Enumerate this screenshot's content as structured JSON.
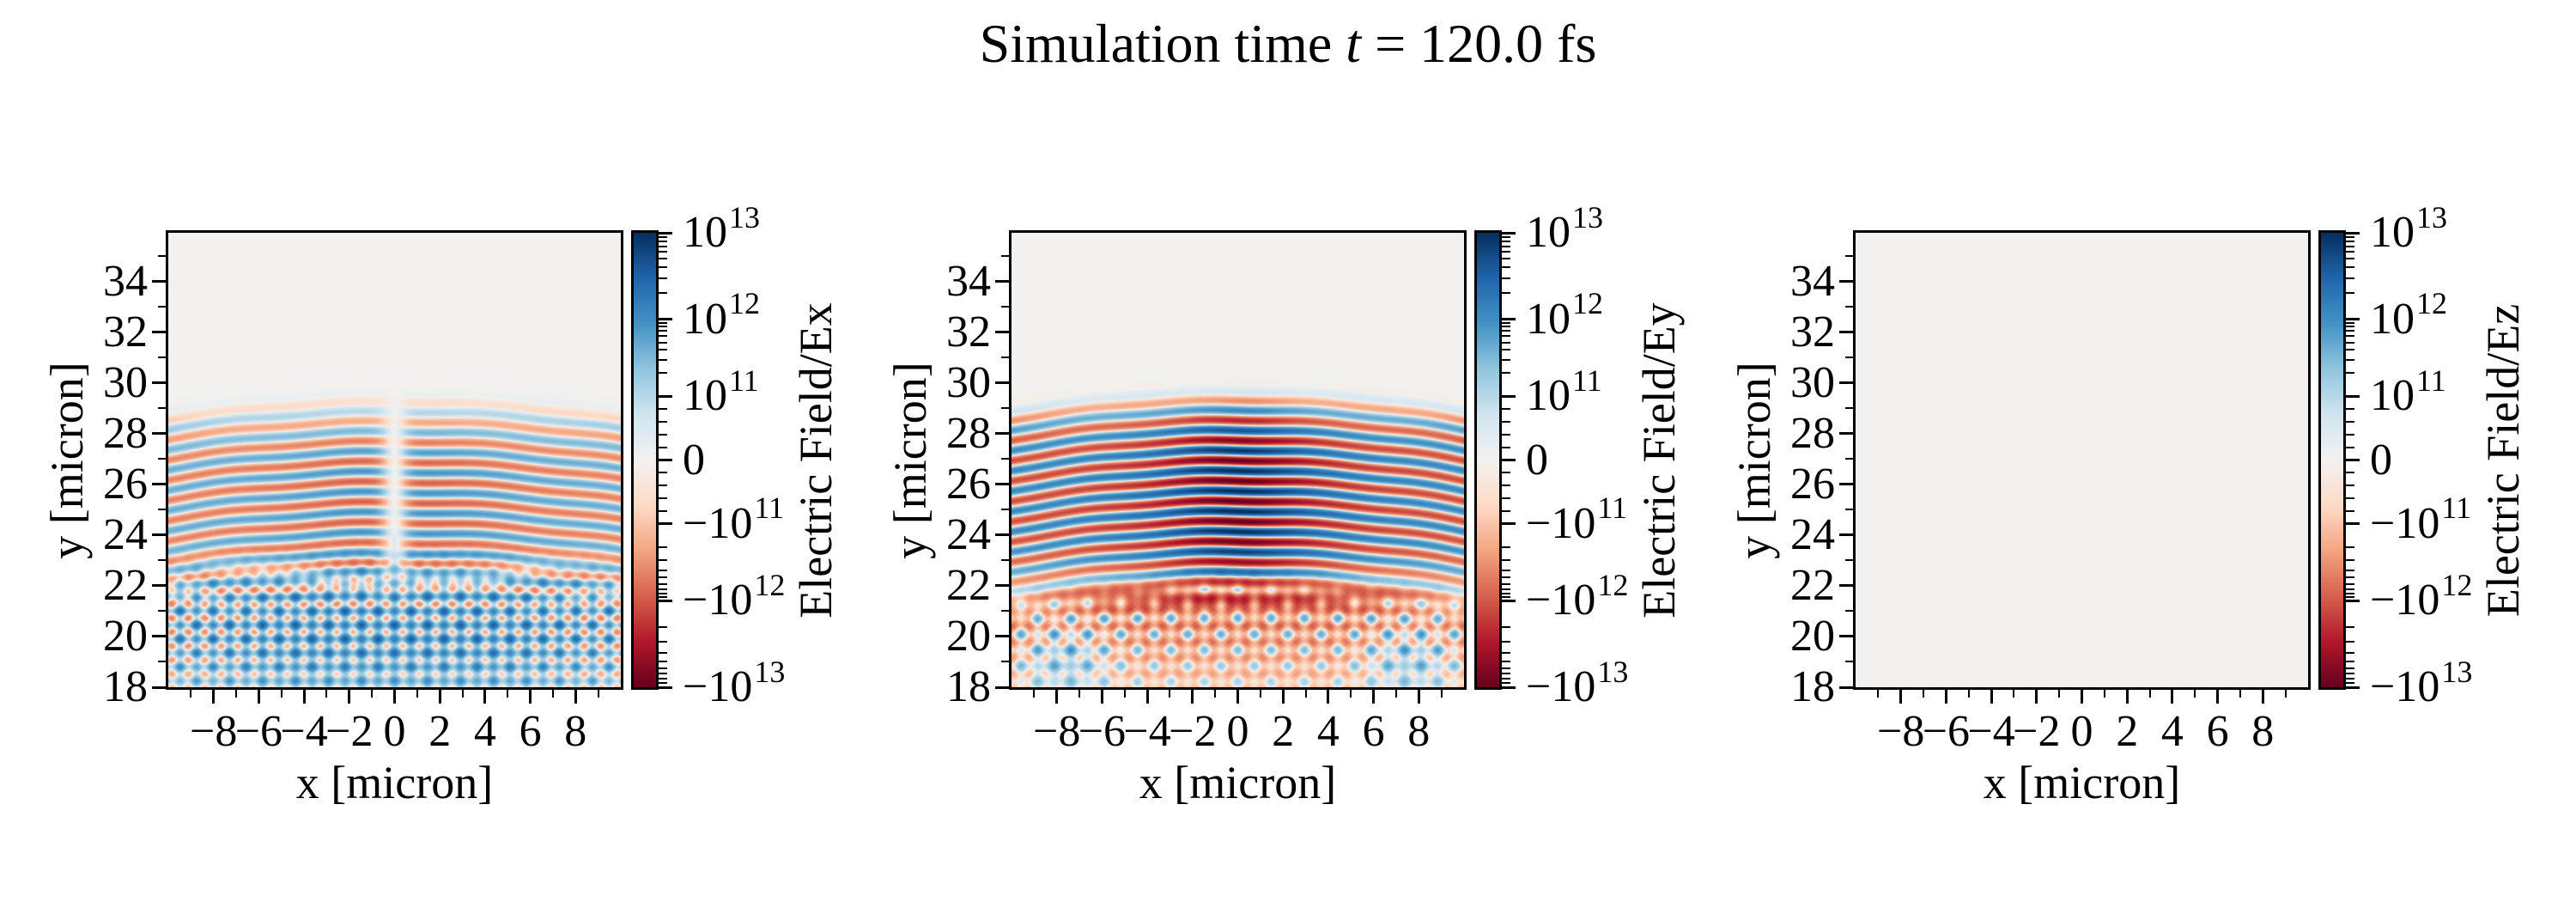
{
  "title": {
    "prefix": "Simulation time ",
    "variable": "t",
    "suffix": " = 120.0 fs",
    "full": "Simulation time t = 120.0 fs"
  },
  "colors": {
    "colormap_name": "RdBu (symlog norm)",
    "colormap_stops": [
      "#67001f",
      "#b2182b",
      "#d6604d",
      "#f4a582",
      "#fddbc7",
      "#f2f1ef",
      "#d1e5f0",
      "#92c5de",
      "#4393c6",
      "#2166ac",
      "#053061"
    ],
    "axis_color": "#000000",
    "background": "#ffffff",
    "zero_field_color": "#f2f1ef"
  },
  "chart_data": [
    {
      "type": "heatmap",
      "field": "Ex",
      "xlabel": "x [micron]",
      "ylabel": "y [micron]",
      "xlim": [
        -10,
        10
      ],
      "ylim": [
        18,
        35.93
      ],
      "xticks": [
        -8,
        -6,
        -4,
        -2,
        0,
        2,
        4,
        6,
        8
      ],
      "xtick_labels": [
        "−8",
        "−6",
        "−4",
        "−2",
        "0",
        "2",
        "4",
        "6",
        "8"
      ],
      "yticks": [
        18,
        20,
        22,
        24,
        26,
        28,
        30,
        32,
        34
      ],
      "ytick_labels": [
        "18",
        "20",
        "22",
        "24",
        "26",
        "28",
        "30",
        "32",
        "34"
      ],
      "colorbar": {
        "label": "Electric Field/Ex",
        "scale": "symlog",
        "vmin": "-1e13",
        "vmax": "1e13",
        "tick_labels": [
          {
            "text": "10",
            "sup": "13"
          },
          {
            "text": "10",
            "sup": "12"
          },
          {
            "text": "10",
            "sup": "11"
          },
          {
            "text": "0",
            "sup": ""
          },
          {
            "text": "−10",
            "sup": "11"
          },
          {
            "text": "−10",
            "sup": "12"
          },
          {
            "text": "−10",
            "sup": "13"
          }
        ],
        "tick_positions": [
          0,
          0.19,
          0.36,
          0.5,
          0.64,
          0.81,
          1
        ]
      },
      "pattern": {
        "kind": "ex",
        "description": "Transverse field of a focused laser pulse propagating in -y: alternating red/blue horizontal fringes between y≈22.5 and y≈29.3 with a narrow null line at x=0, wavelength ≈0.8 micron; below y≈23 a V-shaped blue-tinted interference lattice with red diagonal streaks fading toward y=18; uniform near-zero gray above y≈29.5.",
        "wavelength_um": 0.8,
        "pulse_y_range": [
          22.5,
          29.4
        ],
        "scatter_y_range": [
          18,
          23
        ],
        "peak_magnitude": "~1e12"
      }
    },
    {
      "type": "heatmap",
      "field": "Ey",
      "xlabel": "x [micron]",
      "ylabel": "y [micron]",
      "xlim": [
        -10,
        10
      ],
      "ylim": [
        18,
        35.93
      ],
      "xticks": [
        -8,
        -6,
        -4,
        -2,
        0,
        2,
        4,
        6,
        8
      ],
      "xtick_labels": [
        "−8",
        "−6",
        "−4",
        "−2",
        "0",
        "2",
        "4",
        "6",
        "8"
      ],
      "yticks": [
        18,
        20,
        22,
        24,
        26,
        28,
        30,
        32,
        34
      ],
      "ytick_labels": [
        "18",
        "20",
        "22",
        "24",
        "26",
        "28",
        "30",
        "32",
        "34"
      ],
      "colorbar": {
        "label": "Electric Field/Ey",
        "scale": "symlog",
        "vmin": "-1e13",
        "vmax": "1e13",
        "tick_labels": [
          {
            "text": "10",
            "sup": "13"
          },
          {
            "text": "10",
            "sup": "12"
          },
          {
            "text": "10",
            "sup": "11"
          },
          {
            "text": "0",
            "sup": ""
          },
          {
            "text": "−10",
            "sup": "11"
          },
          {
            "text": "−10",
            "sup": "12"
          },
          {
            "text": "−10",
            "sup": "13"
          }
        ],
        "tick_positions": [
          0,
          0.19,
          0.36,
          0.5,
          0.64,
          0.81,
          1
        ]
      },
      "pattern": {
        "kind": "ey",
        "description": "Main polarization component: strongly saturated alternating dark-red/dark-blue curved fringes between y≈21.8 and y≈29.6 (darkest near |x|<2, wavefronts bowing down toward the panel edges), wavelength ≈0.8 micron; deep red band near y≈21.5; below it a red-dominant crisscross interference triangle with light-blue diagonal bands fading toward y=18; uniform near-zero gray above y≈29.7.",
        "wavelength_um": 0.8,
        "pulse_y_range": [
          21.8,
          29.6
        ],
        "scatter_y_range": [
          18,
          22.2
        ],
        "peak_magnitude": "~1e13"
      }
    },
    {
      "type": "heatmap",
      "field": "Ez",
      "xlabel": "x [micron]",
      "ylabel": "y [micron]",
      "xlim": [
        -10,
        10
      ],
      "ylim": [
        18,
        35.93
      ],
      "xticks": [
        -8,
        -6,
        -4,
        -2,
        0,
        2,
        4,
        6,
        8
      ],
      "xtick_labels": [
        "−8",
        "−6",
        "−4",
        "−2",
        "0",
        "2",
        "4",
        "6",
        "8"
      ],
      "yticks": [
        18,
        20,
        22,
        24,
        26,
        28,
        30,
        32,
        34
      ],
      "ytick_labels": [
        "18",
        "20",
        "22",
        "24",
        "26",
        "28",
        "30",
        "32",
        "34"
      ],
      "colorbar": {
        "label": "Electric Field/Ez",
        "scale": "symlog",
        "vmin": "-1e13",
        "vmax": "1e13",
        "tick_labels": [
          {
            "text": "10",
            "sup": "13"
          },
          {
            "text": "10",
            "sup": "12"
          },
          {
            "text": "10",
            "sup": "11"
          },
          {
            "text": "0",
            "sup": ""
          },
          {
            "text": "−10",
            "sup": "11"
          },
          {
            "text": "−10",
            "sup": "12"
          },
          {
            "text": "−10",
            "sup": "13"
          }
        ],
        "tick_positions": [
          0,
          0.19,
          0.36,
          0.5,
          0.64,
          0.81,
          1
        ]
      },
      "pattern": {
        "kind": "zero",
        "description": "Out-of-plane component is everywhere zero: uniform light-gray panel.",
        "wavelength_um": null,
        "pulse_y_range": null,
        "scatter_y_range": null,
        "peak_magnitude": "0"
      }
    }
  ]
}
